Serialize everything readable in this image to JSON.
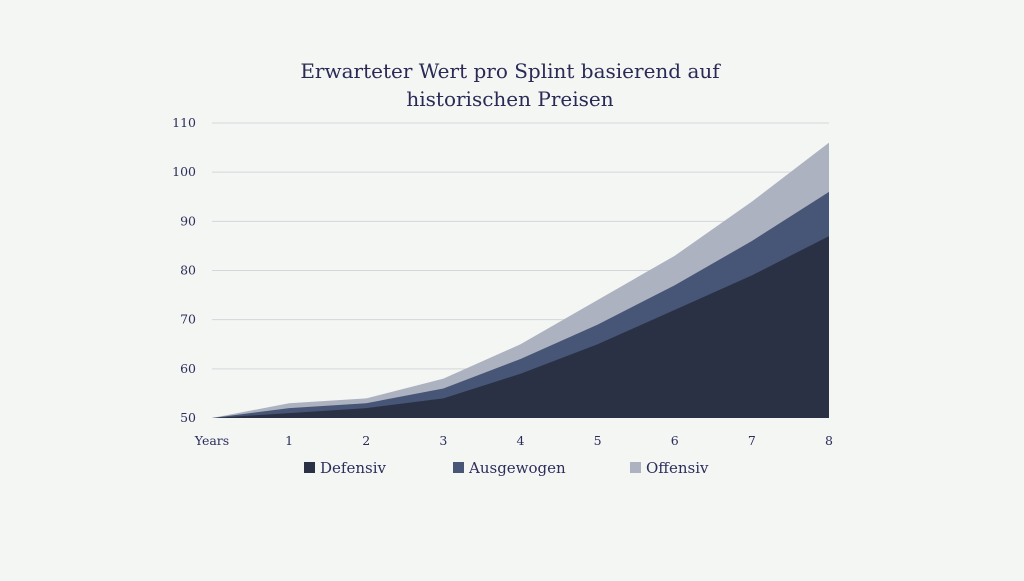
{
  "chart_data": {
    "type": "area",
    "stacked": true,
    "title_lines": [
      "Erwarteter Wert pro Splint basierend auf",
      "historischen Preisen"
    ],
    "x": [
      "Years",
      "1",
      "2",
      "3",
      "4",
      "5",
      "6",
      "7",
      "8"
    ],
    "x_numeric": [
      0,
      1,
      2,
      3,
      4,
      5,
      6,
      7,
      8
    ],
    "ylim": [
      50,
      110
    ],
    "yticks": [
      50,
      60,
      70,
      80,
      90,
      100,
      110
    ],
    "grid": true,
    "legend_position": "bottom",
    "series": [
      {
        "name": "Defensiv",
        "color": "#2b3144",
        "values": [
          50,
          51,
          52,
          54,
          59,
          65,
          72,
          79,
          87
        ]
      },
      {
        "name": "Ausgewogen",
        "color": "#475676",
        "values": [
          50,
          52,
          53,
          56,
          62,
          69,
          77,
          86,
          96
        ]
      },
      {
        "name": "Offensiv",
        "color": "#adb2c0",
        "values": [
          50,
          53,
          54,
          58,
          65,
          74,
          83,
          94,
          106
        ]
      }
    ]
  },
  "colors": {
    "background": "#f4f6f4",
    "text": "#2d2d5a",
    "grid": "#d4d6da"
  }
}
